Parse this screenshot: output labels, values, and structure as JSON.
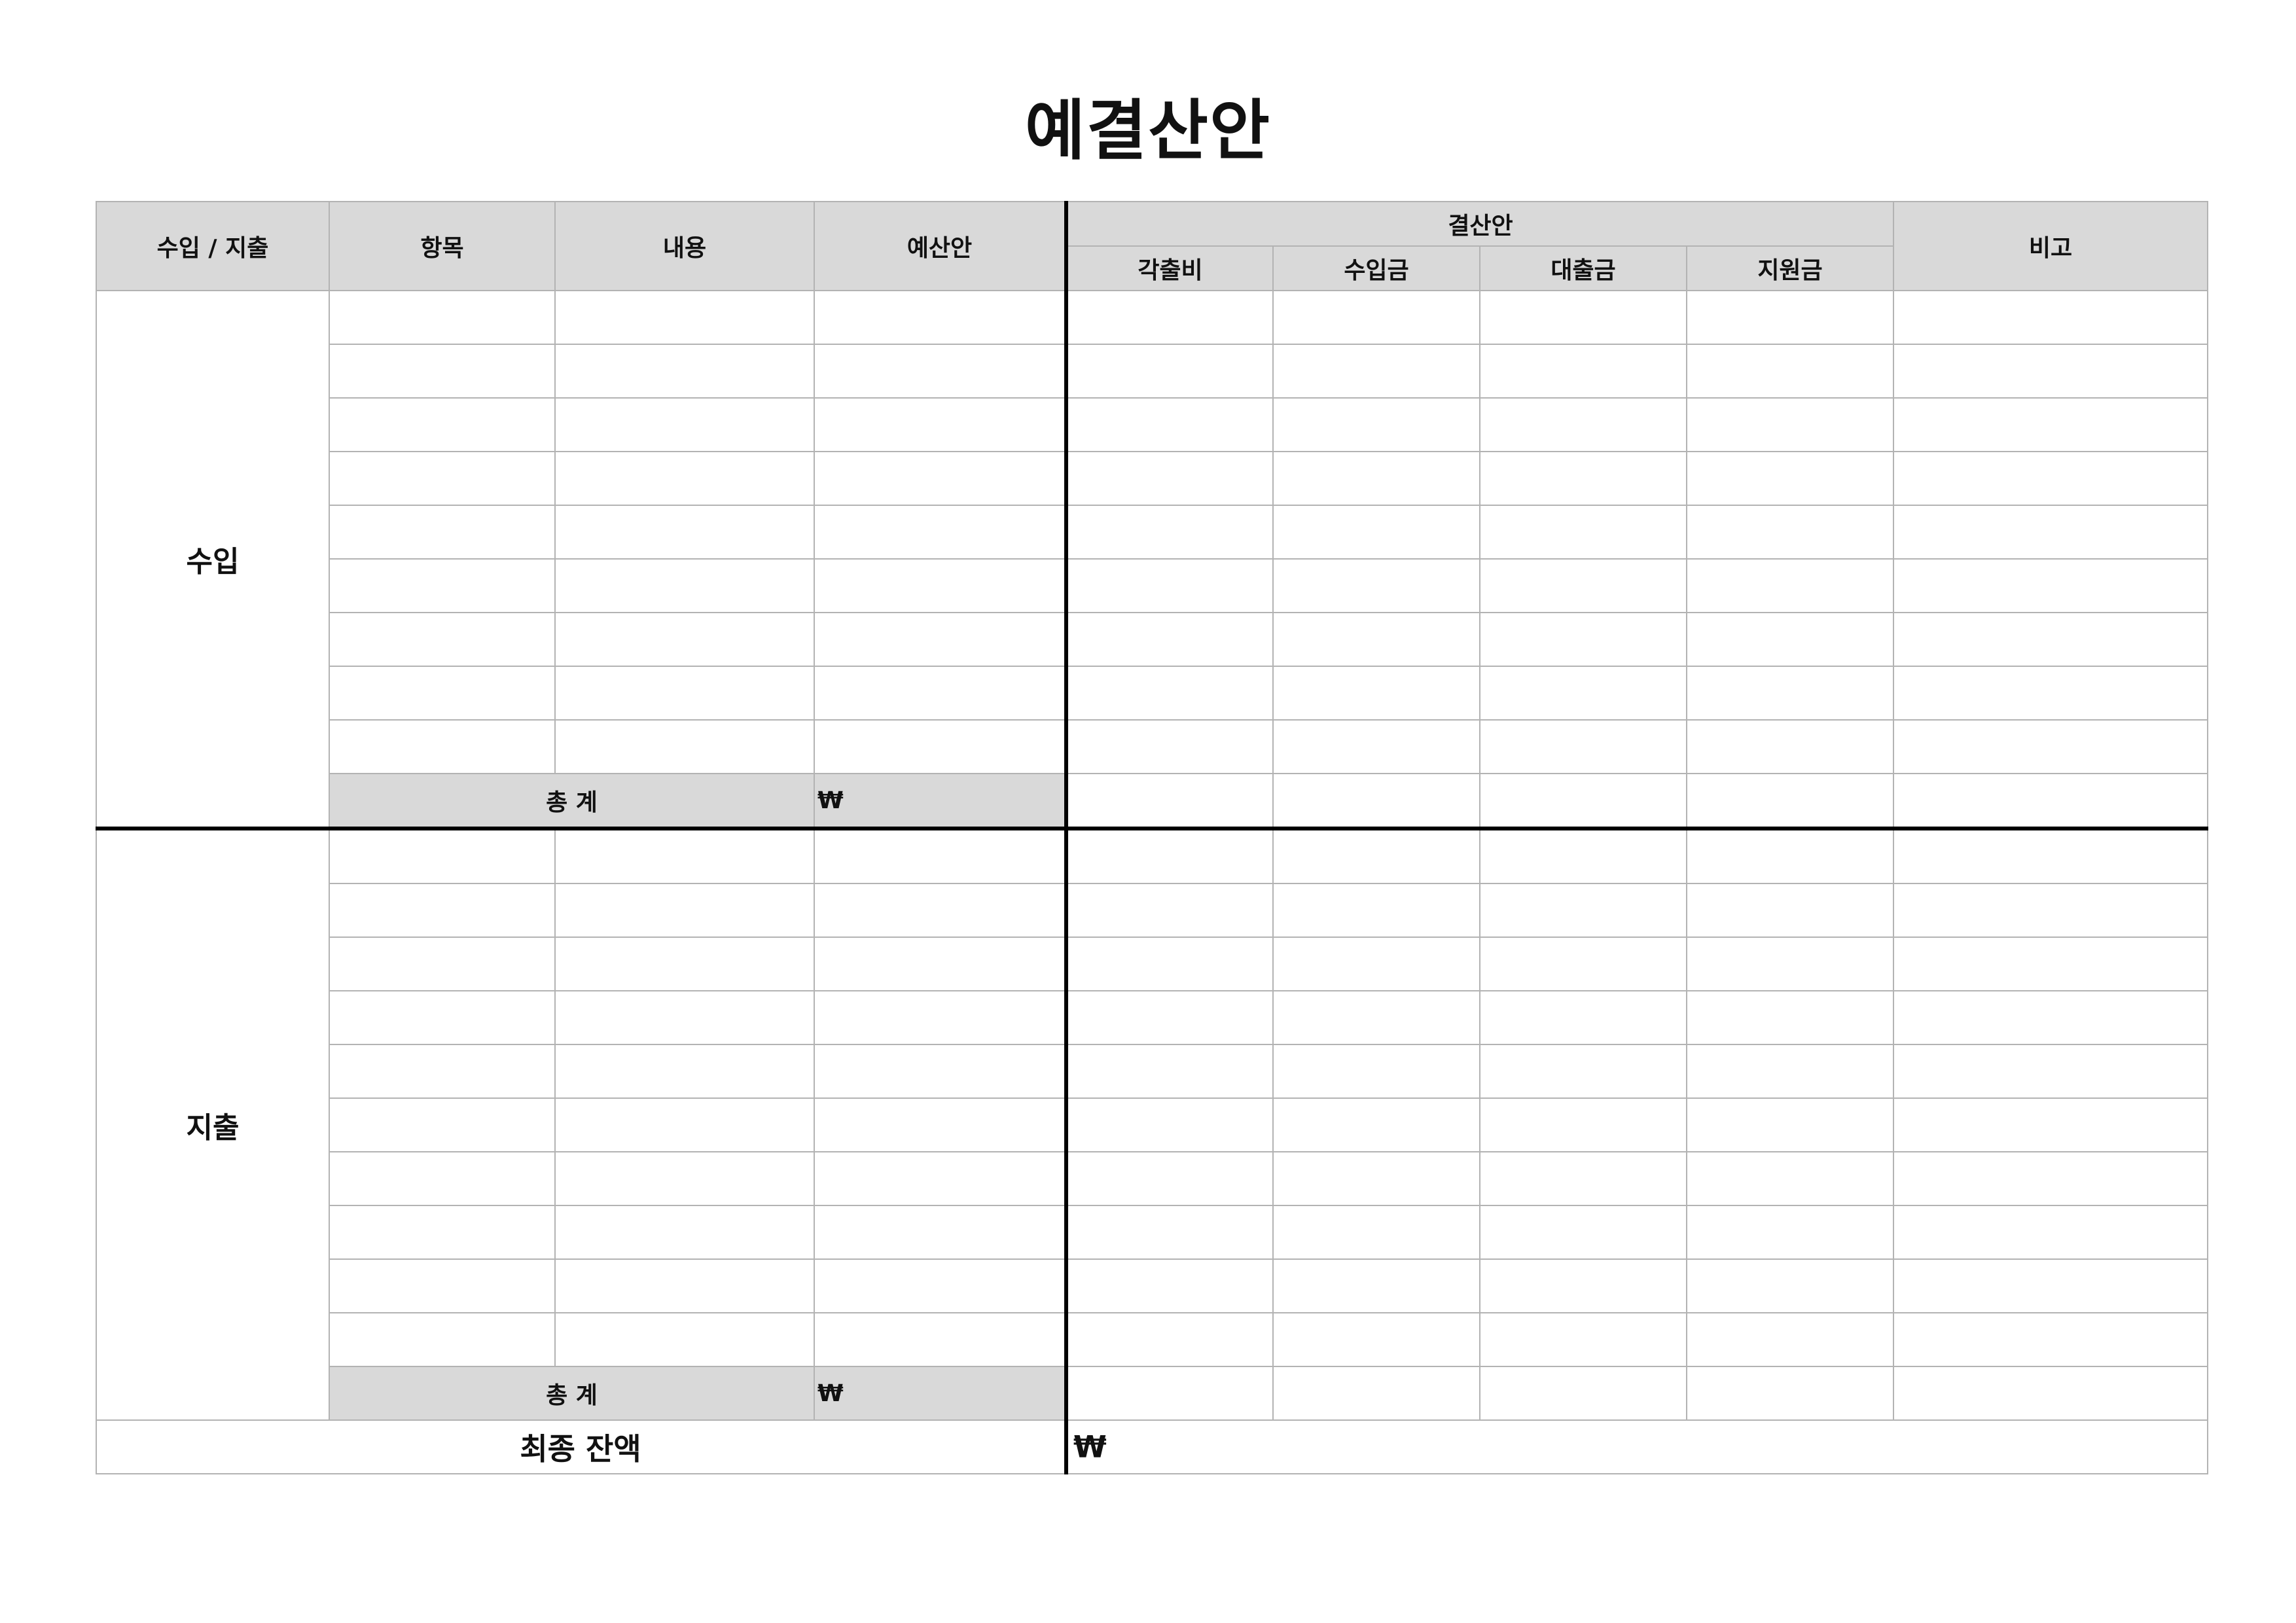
{
  "title": "예결산안",
  "header": {
    "col_type": "수입 / 지출",
    "col_item": "항목",
    "col_desc": "내용",
    "col_budget": "예산안",
    "col_settlement": "결산안",
    "col_note": "비고",
    "sub_contribution": "각출비",
    "sub_income": "수입금",
    "sub_loan": "대출금",
    "sub_support": "지원금"
  },
  "income": {
    "label": "수입",
    "row_count": 9,
    "subtotal_label": "총 계",
    "currency": "₩"
  },
  "expense": {
    "label": "지출",
    "row_count": 10,
    "subtotal_label": "총 계",
    "currency": "₩"
  },
  "final": {
    "label": "최종 잔액",
    "currency": "₩"
  }
}
